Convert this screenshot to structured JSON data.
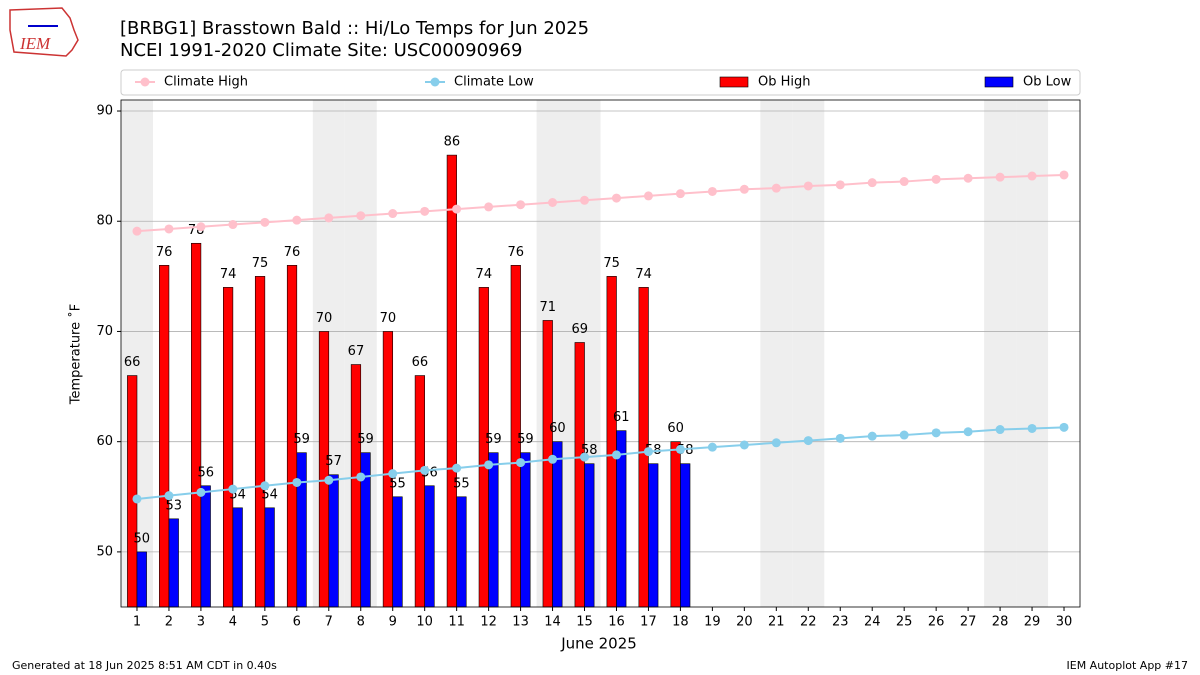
{
  "chart_data": {
    "type": "bar_line",
    "logo_text": "IEM",
    "title": "[BRBG1] Brasstown Bald :: Hi/Lo Temps for Jun 2025",
    "subtitle": "NCEI 1991-2020 Climate Site: USC00090969",
    "xlabel": "June 2025",
    "ylabel": "Temperature ˚F",
    "x": [
      1,
      2,
      3,
      4,
      5,
      6,
      7,
      8,
      9,
      10,
      11,
      12,
      13,
      14,
      15,
      16,
      17,
      18,
      19,
      20,
      21,
      22,
      23,
      24,
      25,
      26,
      27,
      28,
      29,
      30
    ],
    "xlim": [
      0.5,
      30.5
    ],
    "xticks": [
      1,
      2,
      3,
      4,
      5,
      6,
      7,
      8,
      9,
      10,
      11,
      12,
      13,
      14,
      15,
      16,
      17,
      18,
      19,
      20,
      21,
      22,
      23,
      24,
      25,
      26,
      27,
      28,
      29,
      30
    ],
    "ylim": [
      45,
      91
    ],
    "yticks": [
      50,
      60,
      70,
      80,
      90
    ],
    "grid": true,
    "shaded_days": [
      1,
      7,
      8,
      14,
      15,
      21,
      22,
      28,
      29
    ],
    "series": [
      {
        "name": "Climate High",
        "kind": "line",
        "color": "#ffc0cb",
        "values": [
          79.1,
          79.3,
          79.5,
          79.7,
          79.9,
          80.1,
          80.3,
          80.5,
          80.7,
          80.9,
          81.1,
          81.3,
          81.5,
          81.7,
          81.9,
          82.1,
          82.3,
          82.5,
          82.7,
          82.9,
          83.0,
          83.2,
          83.3,
          83.5,
          83.6,
          83.8,
          83.9,
          84.0,
          84.1,
          84.2
        ]
      },
      {
        "name": "Climate Low",
        "kind": "line",
        "color": "#87ceeb",
        "values": [
          54.8,
          55.1,
          55.4,
          55.7,
          56.0,
          56.3,
          56.5,
          56.8,
          57.1,
          57.4,
          57.6,
          57.9,
          58.1,
          58.4,
          58.6,
          58.8,
          59.1,
          59.3,
          59.5,
          59.7,
          59.9,
          60.1,
          60.3,
          60.5,
          60.6,
          60.8,
          60.9,
          61.1,
          61.2,
          61.3
        ]
      },
      {
        "name": "Ob High",
        "kind": "bar",
        "color": "#ff0000",
        "values": [
          66,
          76,
          78,
          74,
          75,
          76,
          70,
          67,
          70,
          66,
          86,
          74,
          76,
          71,
          69,
          75,
          74,
          60,
          null,
          null,
          null,
          null,
          null,
          null,
          null,
          null,
          null,
          null,
          null,
          null
        ]
      },
      {
        "name": "Ob Low",
        "kind": "bar",
        "color": "#0000ff",
        "values": [
          50,
          53,
          56,
          54,
          54,
          59,
          57,
          59,
          55,
          56,
          55,
          59,
          59,
          60,
          58,
          61,
          58,
          58,
          null,
          null,
          null,
          null,
          null,
          null,
          null,
          null,
          null,
          null,
          null,
          null
        ]
      }
    ],
    "footer_left": "Generated at 18 Jun 2025 8:51 AM CDT in 0.40s",
    "footer_right": "IEM Autoplot App #17"
  }
}
